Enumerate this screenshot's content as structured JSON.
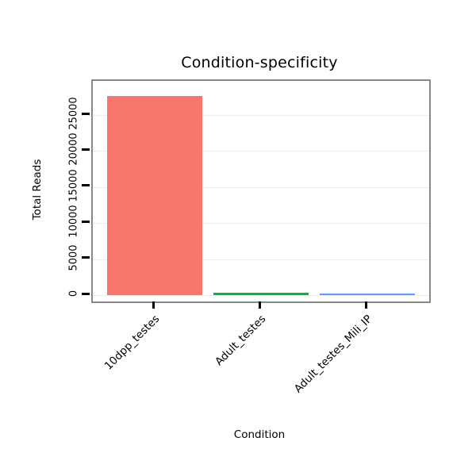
{
  "chart_data": {
    "type": "bar",
    "title": "Condition-specificity",
    "xlabel": "Condition",
    "ylabel": "Total Reads",
    "categories": [
      "10dpp_testes",
      "Adult_testes",
      "Adult_testes_Mili_IP"
    ],
    "values": [
      27600,
      350,
      250
    ],
    "colors": [
      "#F8766D",
      "#00BA38",
      "#619CFF"
    ],
    "yticks": [
      0,
      5000,
      10000,
      15000,
      20000,
      25000
    ],
    "ylim": [
      0,
      30500
    ],
    "grid": true,
    "legend": "none"
  }
}
